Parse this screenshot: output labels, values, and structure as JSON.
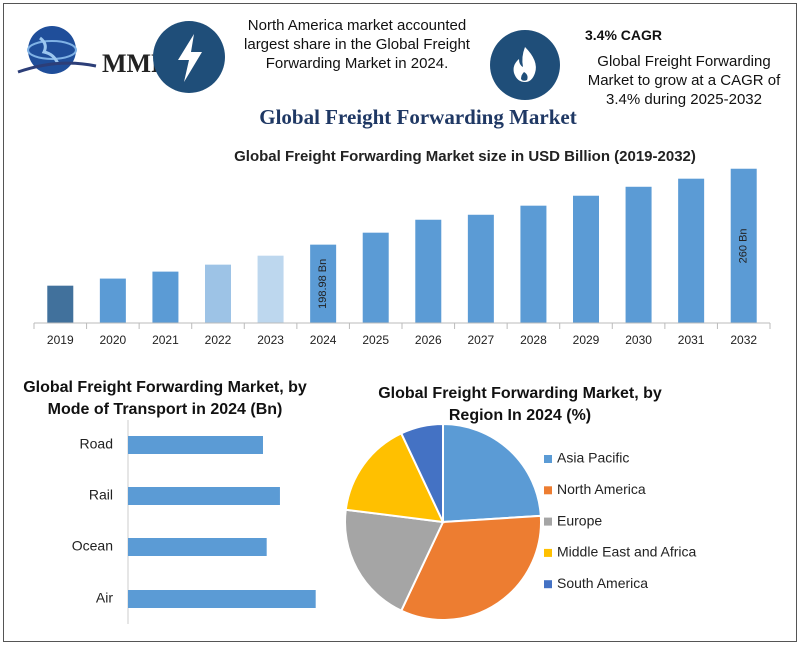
{
  "header": {
    "logo": "MMR",
    "note_left": "North America market accounted largest share in the Global Freight Forwarding Market in 2024.",
    "cagr": "3.4% CAGR",
    "note_right": "Global Freight Forwarding Market to grow at a CAGR of 3.4% during 2025-2032",
    "title": "Global Freight Forwarding Market"
  },
  "chart_data": [
    {
      "type": "bar",
      "title": "Global Freight Forwarding Market size in USD Billion (2019-2032)",
      "categories": [
        "2019",
        "2020",
        "2021",
        "2022",
        "2023",
        "2024",
        "2025",
        "2026",
        "2027",
        "2028",
        "2029",
        "2030",
        "2031",
        "2032"
      ],
      "values": [
        166,
        171.7,
        177.3,
        182.9,
        190.1,
        198.98,
        208.6,
        219,
        223,
        230.3,
        238.3,
        245.5,
        252,
        260
      ],
      "value_labels": [
        null,
        null,
        null,
        null,
        null,
        "198.98 Bn",
        null,
        null,
        null,
        null,
        null,
        null,
        null,
        "260 Bn"
      ],
      "colors": [
        "#41719c",
        "#5b9bd5",
        "#5b9bd5",
        "#9dc3e6",
        "#bdd7ee",
        "#5b9bd5",
        "#5b9bd5",
        "#5b9bd5",
        "#5b9bd5",
        "#5b9bd5",
        "#5b9bd5",
        "#5b9bd5",
        "#5b9bd5",
        "#5b9bd5"
      ],
      "ylim": [
        136,
        263
      ]
    },
    {
      "type": "barh",
      "title": "Global Freight Forwarding Market, by Mode of Transport in 2024 (Bn)",
      "categories": [
        "Road",
        "Rail",
        "Ocean",
        "Air"
      ],
      "values": [
        43.8,
        49.3,
        45,
        60.9
      ],
      "color": "#5b9bd5",
      "xlim": [
        0,
        61
      ]
    },
    {
      "type": "pie",
      "title": "Global Freight Forwarding Market, by Region In 2024 (%)",
      "categories": [
        "Asia Pacific",
        "North America",
        "Europe",
        "Middle East and Africa",
        "South America"
      ],
      "values": [
        24,
        33,
        20,
        16,
        7
      ],
      "colors": [
        "#5b9bd5",
        "#ed7d31",
        "#a5a5a5",
        "#ffc000",
        "#4472c4"
      ],
      "legend": "right"
    }
  ]
}
